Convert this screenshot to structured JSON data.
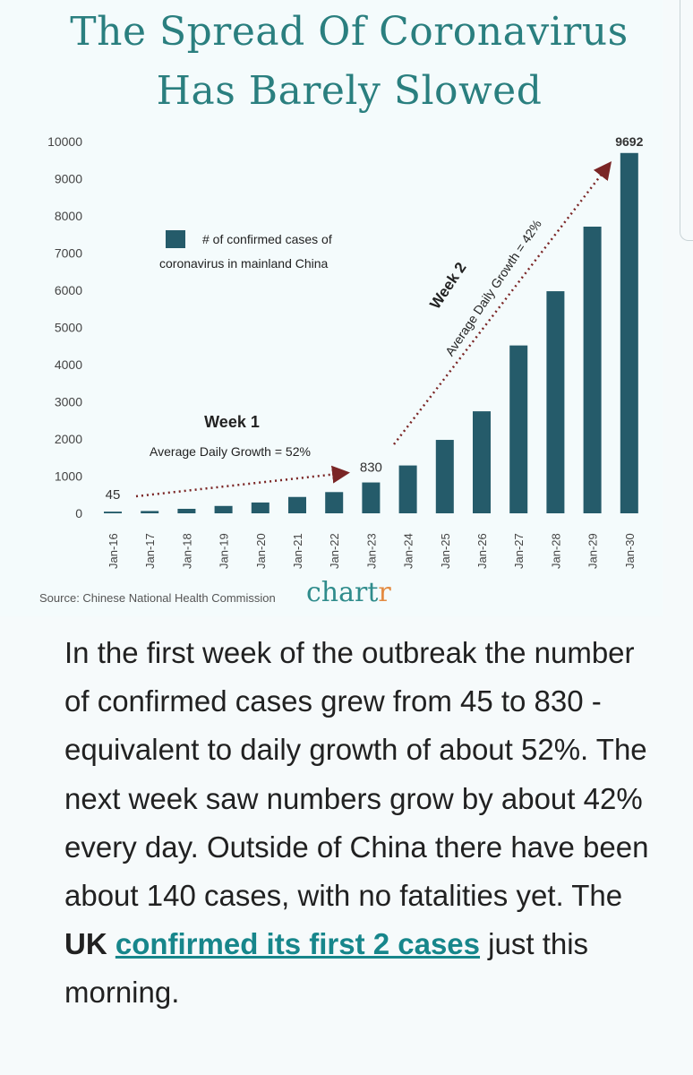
{
  "title_line1": "The Spread Of Coronavirus",
  "title_line2": "Has Barely Slowed",
  "chart_data": {
    "type": "bar",
    "title": "The Spread Of Coronavirus Has Barely Slowed",
    "legend_label_line1": "# of confirmed cases of",
    "legend_label_line2": "coronavirus in mainland China",
    "categories": [
      "Jan-16",
      "Jan-17",
      "Jan-18",
      "Jan-19",
      "Jan-20",
      "Jan-21",
      "Jan-22",
      "Jan-23",
      "Jan-24",
      "Jan-25",
      "Jan-26",
      "Jan-27",
      "Jan-28",
      "Jan-29",
      "Jan-30"
    ],
    "values": [
      45,
      62,
      121,
      198,
      291,
      440,
      571,
      830,
      1287,
      1975,
      2744,
      4515,
      5974,
      7711,
      9692
    ],
    "y_ticks": [
      "0",
      "1000",
      "2000",
      "3000",
      "4000",
      "5000",
      "6000",
      "7000",
      "8000",
      "9000",
      "10000"
    ],
    "ylim": [
      0,
      10000
    ],
    "data_labels": {
      "first": "45",
      "week1_end": "830",
      "last": "9692"
    },
    "bar_color": "#255b6a",
    "annotation_color": "#7a2525",
    "week1": {
      "title": "Week 1",
      "subtitle": "Average Daily Growth = 52%"
    },
    "week2": {
      "title": "Week 2",
      "subtitle": "Average Daily Growth = 42%"
    },
    "xlabel": "",
    "ylabel": ""
  },
  "source": "Source: Chinese National Health Commission",
  "brand": {
    "main": "chart",
    "accent": "r"
  },
  "article": {
    "intro": "In the first week of the outbreak the number of confirmed cases grew from 45 to 830 - equivalent to daily growth of about 52%. The next week saw numbers grow by about 42% every day. Outside of China there have been about 140 cases, with no fatalities yet. The ",
    "bold": "UK",
    "space": " ",
    "link": "confirmed its first 2 cases",
    "outro": " just this morning."
  }
}
